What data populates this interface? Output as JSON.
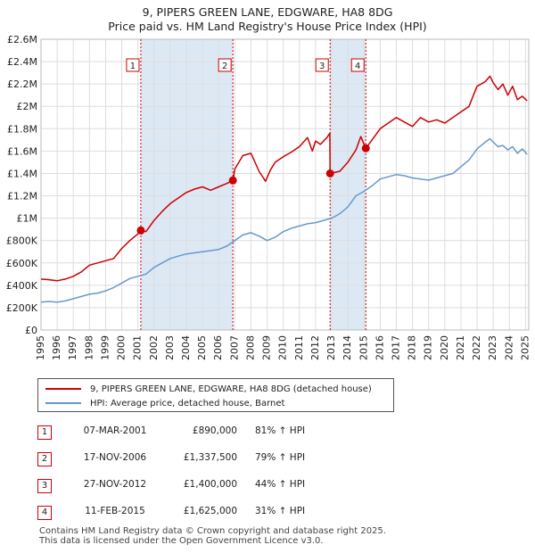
{
  "title_line1": "9, PIPERS GREEN LANE, EDGWARE, HA8 8DG",
  "title_line2": "Price paid vs. HM Land Registry's House Price Index (HPI)",
  "colors": {
    "property": "#cc0000",
    "hpi": "#6699cc",
    "band": "#dde8f5",
    "grid": "#dddddd",
    "vline": "#cc0000"
  },
  "legend": {
    "property_label": "9, PIPERS GREEN LANE, EDGWARE, HA8 8DG (detached house)",
    "hpi_label": "HPI: Average price, detached house, Barnet"
  },
  "sales": [
    {
      "num": "1",
      "date": "07-MAR-2001",
      "price": "£890,000",
      "hpi": "81% ↑ HPI"
    },
    {
      "num": "2",
      "date": "17-NOV-2006",
      "price": "£1,337,500",
      "hpi": "79% ↑ HPI"
    },
    {
      "num": "3",
      "date": "27-NOV-2012",
      "price": "£1,400,000",
      "hpi": "44% ↑ HPI"
    },
    {
      "num": "4",
      "date": "11-FEB-2015",
      "price": "£1,625,000",
      "hpi": "31% ↑ HPI"
    }
  ],
  "footer_line1": "Contains HM Land Registry data © Crown copyright and database right 2025.",
  "footer_line2": "This data is licensed under the Open Government Licence v3.0.",
  "chart_data": {
    "type": "line",
    "title": "9, PIPERS GREEN LANE, EDGWARE, HA8 8DG",
    "subtitle": "Price paid vs. HM Land Registry's House Price Index (HPI)",
    "xlabel": "",
    "ylabel": "",
    "xlim": [
      1995,
      2025.2
    ],
    "ylim": [
      0,
      2600000
    ],
    "y_ticks": [
      0,
      200000,
      400000,
      600000,
      800000,
      1000000,
      1200000,
      1400000,
      1600000,
      1800000,
      2000000,
      2200000,
      2400000,
      2600000
    ],
    "y_tick_labels": [
      "£0",
      "£200K",
      "£400K",
      "£600K",
      "£800K",
      "£1M",
      "£1.2M",
      "£1.4M",
      "£1.6M",
      "£1.8M",
      "£2M",
      "£2.2M",
      "£2.4M",
      "£2.6M"
    ],
    "x_ticks": [
      1995,
      1996,
      1997,
      1998,
      1999,
      2000,
      2001,
      2002,
      2003,
      2004,
      2005,
      2006,
      2007,
      2008,
      2009,
      2010,
      2011,
      2012,
      2013,
      2014,
      2015,
      2016,
      2017,
      2018,
      2019,
      2020,
      2021,
      2022,
      2023,
      2024,
      2025
    ],
    "x_tick_labels": [
      "1995",
      "1996",
      "1997",
      "1998",
      "1999",
      "2000",
      "2001",
      "2002",
      "2003",
      "2004",
      "2005",
      "2006",
      "2007",
      "2008",
      "2009",
      "2010",
      "2011",
      "2012",
      "2013",
      "2014",
      "2015",
      "2016",
      "2017",
      "2018",
      "2019",
      "2020",
      "2021",
      "2022",
      "2023",
      "2024",
      "2025"
    ],
    "grid": true,
    "shaded_periods": [
      [
        2001.18,
        2006.88
      ],
      [
        2012.9,
        2015.11
      ]
    ],
    "series": [
      {
        "name": "9, PIPERS GREEN LANE, EDGWARE, HA8 8DG (detached house)",
        "color": "#cc0000",
        "x": [
          1995.0,
          1995.5,
          1996.0,
          1996.5,
          1997.0,
          1997.5,
          1998.0,
          1998.5,
          1999.0,
          1999.5,
          2000.0,
          2000.5,
          2001.0,
          2001.18,
          2001.5,
          2002.0,
          2002.5,
          2003.0,
          2003.5,
          2004.0,
          2004.5,
          2005.0,
          2005.5,
          2006.0,
          2006.5,
          2006.88,
          2007.0,
          2007.5,
          2008.0,
          2008.5,
          2008.9,
          2009.2,
          2009.5,
          2010.0,
          2010.5,
          2011.0,
          2011.5,
          2011.8,
          2012.0,
          2012.3,
          2012.7,
          2012.88,
          2012.9,
          2013.5,
          2014.0,
          2014.5,
          2014.8,
          2015.11,
          2015.5,
          2016.0,
          2016.5,
          2017.0,
          2017.5,
          2018.0,
          2018.5,
          2019.0,
          2019.5,
          2020.0,
          2020.5,
          2021.0,
          2021.5,
          2022.0,
          2022.5,
          2022.8,
          2023.0,
          2023.3,
          2023.6,
          2023.9,
          2024.2,
          2024.5,
          2024.8,
          2025.1
        ],
        "y": [
          455000,
          450000,
          440000,
          455000,
          480000,
          520000,
          580000,
          600000,
          620000,
          640000,
          730000,
          800000,
          860000,
          890000,
          880000,
          980000,
          1060000,
          1130000,
          1180000,
          1230000,
          1260000,
          1280000,
          1250000,
          1280000,
          1310000,
          1337500,
          1440000,
          1560000,
          1580000,
          1420000,
          1330000,
          1430000,
          1500000,
          1550000,
          1590000,
          1640000,
          1720000,
          1600000,
          1690000,
          1660000,
          1720000,
          1760000,
          1400000,
          1420000,
          1500000,
          1610000,
          1730000,
          1625000,
          1700000,
          1800000,
          1850000,
          1900000,
          1860000,
          1820000,
          1900000,
          1860000,
          1880000,
          1850000,
          1900000,
          1950000,
          2000000,
          2180000,
          2220000,
          2270000,
          2210000,
          2150000,
          2200000,
          2100000,
          2180000,
          2060000,
          2090000,
          2050000
        ]
      },
      {
        "name": "HPI: Average price, detached house, Barnet",
        "color": "#6699cc",
        "x": [
          1995.0,
          1995.5,
          1996.0,
          1996.5,
          1997.0,
          1997.5,
          1998.0,
          1998.5,
          1999.0,
          1999.5,
          2000.0,
          2000.5,
          2001.0,
          2001.5,
          2002.0,
          2002.5,
          2003.0,
          2003.5,
          2004.0,
          2004.5,
          2005.0,
          2005.5,
          2006.0,
          2006.5,
          2007.0,
          2007.5,
          2008.0,
          2008.5,
          2009.0,
          2009.5,
          2010.0,
          2010.5,
          2011.0,
          2011.5,
          2012.0,
          2012.5,
          2013.0,
          2013.5,
          2014.0,
          2014.5,
          2015.0,
          2015.5,
          2016.0,
          2016.5,
          2017.0,
          2017.5,
          2018.0,
          2018.5,
          2019.0,
          2019.5,
          2020.0,
          2020.5,
          2021.0,
          2021.5,
          2022.0,
          2022.5,
          2022.8,
          2023.0,
          2023.3,
          2023.6,
          2023.9,
          2024.2,
          2024.5,
          2024.8,
          2025.1
        ],
        "y": [
          250000,
          255000,
          250000,
          260000,
          280000,
          300000,
          320000,
          330000,
          350000,
          380000,
          420000,
          460000,
          480000,
          500000,
          560000,
          600000,
          640000,
          660000,
          680000,
          690000,
          700000,
          710000,
          720000,
          750000,
          800000,
          850000,
          870000,
          840000,
          800000,
          830000,
          880000,
          910000,
          930000,
          950000,
          960000,
          980000,
          1000000,
          1040000,
          1100000,
          1200000,
          1240000,
          1290000,
          1350000,
          1370000,
          1390000,
          1380000,
          1360000,
          1350000,
          1340000,
          1360000,
          1380000,
          1400000,
          1460000,
          1520000,
          1620000,
          1680000,
          1710000,
          1680000,
          1640000,
          1650000,
          1610000,
          1640000,
          1580000,
          1620000,
          1570000
        ]
      }
    ],
    "sale_markers": [
      {
        "label": "1",
        "x": 2001.18,
        "y": 890000
      },
      {
        "label": "2",
        "x": 2006.88,
        "y": 1337500
      },
      {
        "label": "3",
        "x": 2012.9,
        "y": 1400000
      },
      {
        "label": "4",
        "x": 2015.11,
        "y": 1625000
      }
    ]
  }
}
